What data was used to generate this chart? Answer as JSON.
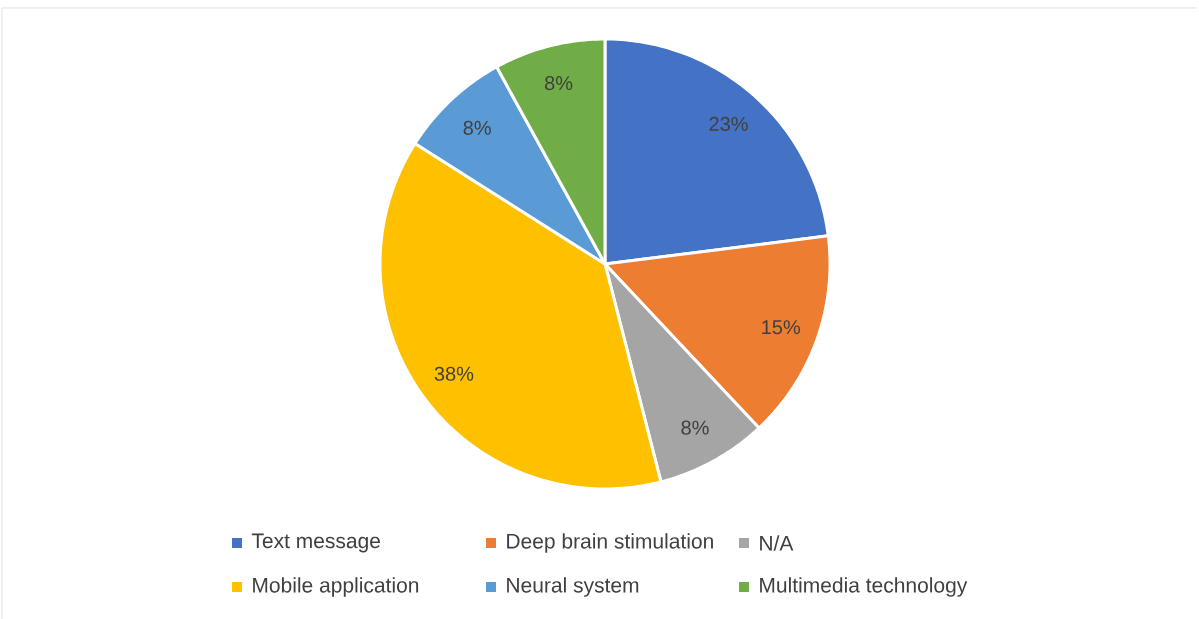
{
  "chart_data": {
    "type": "pie",
    "categories": [
      "Text message",
      "Deep brain stimulation",
      "N/A",
      "Mobile application",
      "Neural system",
      "Multimedia technology"
    ],
    "values": [
      23,
      15,
      8,
      38,
      8,
      8
    ],
    "colors": [
      "#4472c4",
      "#ed7d31",
      "#a5a5a5",
      "#ffc000",
      "#5b9bd5",
      "#70ad47"
    ],
    "value_labels": [
      "23%",
      "15%",
      "8%",
      "38%",
      "8%",
      "8%"
    ],
    "legend": "bottom"
  }
}
